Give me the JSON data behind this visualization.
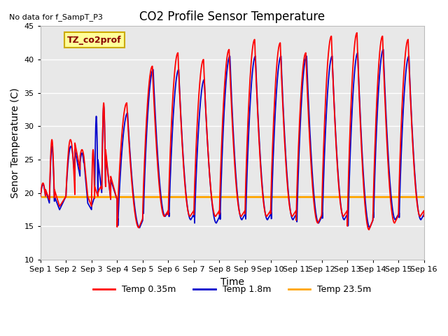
{
  "title": "CO2 Profile Sensor Temperature",
  "xlabel": "Time",
  "ylabel": "Senor Temperature (C)",
  "top_left_text": "No data for f_SampT_P3",
  "legend_box_text": "TZ_co2prof",
  "ylim": [
    10,
    45
  ],
  "xlim": [
    0,
    15
  ],
  "x_tick_labels": [
    "Sep 1",
    "Sep 2",
    "Sep 3",
    "Sep 4",
    "Sep 5",
    "Sep 6",
    "Sep 7",
    "Sep 8",
    "Sep 9",
    "Sep 10",
    "Sep 11",
    "Sep 12",
    "Sep 13",
    "Sep 14",
    "Sep 15",
    "Sep 16"
  ],
  "color_red": "#FF0000",
  "color_blue": "#0000CC",
  "color_orange": "#FFA500",
  "legend_entries": [
    "Temp 0.35m",
    "Temp 1.8m",
    "Temp 23.5m"
  ],
  "bg_color": "#E8E8E8",
  "grid_color": "#FFFFFF",
  "constant_temp": 19.4,
  "title_fontsize": 12,
  "axis_fontsize": 10,
  "tick_fontsize": 8,
  "figwidth": 6.4,
  "figheight": 4.8,
  "dpi": 100
}
